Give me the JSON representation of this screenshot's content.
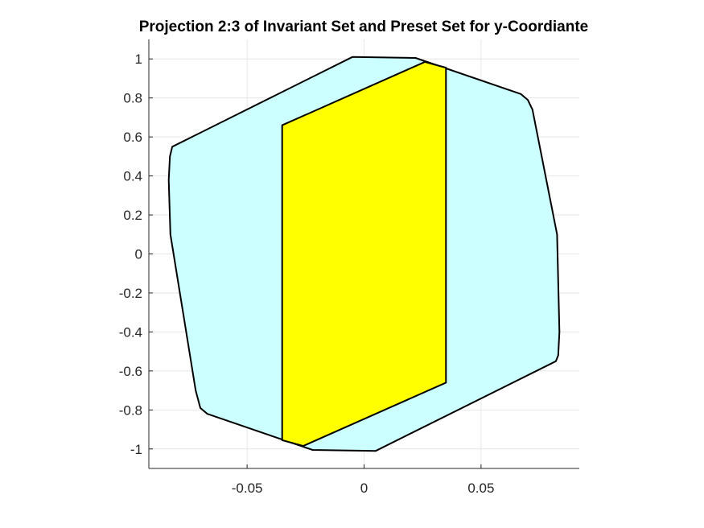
{
  "chart_data": {
    "type": "area",
    "title": "Projection 2:3 of Invariant Set and Preset Set for y-Coordiante",
    "xlabel": "",
    "ylabel": "",
    "xlim": [
      -0.092,
      0.092
    ],
    "ylim": [
      -1.1,
      1.1
    ],
    "grid": true,
    "x_ticks": [
      -0.05,
      0,
      0.05
    ],
    "x_tick_labels": [
      "-0.05",
      "0",
      "0.05"
    ],
    "y_ticks": [
      1,
      0.8,
      0.6,
      0.4,
      0.2,
      0,
      -0.2,
      -0.4,
      -0.6,
      -0.8,
      -1
    ],
    "y_tick_labels": [
      "1",
      "0.8",
      "0.6",
      "0.4",
      "0.2",
      "0",
      "-0.2",
      "-0.4",
      "-0.6",
      "-0.8",
      "-1"
    ],
    "series": [
      {
        "color": "#ccffff",
        "edge_color": "#000000",
        "points": [
          [
            -0.005,
            1.01
          ],
          [
            0.022,
            1.005
          ],
          [
            0.067,
            0.82
          ],
          [
            0.07,
            0.79
          ],
          [
            0.072,
            0.74
          ],
          [
            0.0825,
            0.1
          ],
          [
            0.0835,
            -0.4
          ],
          [
            0.083,
            -0.52
          ],
          [
            0.082,
            -0.55
          ],
          [
            0.005,
            -1.01
          ],
          [
            -0.022,
            -1.005
          ],
          [
            -0.067,
            -0.82
          ],
          [
            -0.07,
            -0.79
          ],
          [
            -0.072,
            -0.7
          ],
          [
            -0.0828,
            0.1
          ],
          [
            -0.0835,
            0.38
          ],
          [
            -0.083,
            0.5
          ],
          [
            -0.082,
            0.55
          ]
        ]
      },
      {
        "color": "#ffff00",
        "edge_color": "#000000",
        "points": [
          [
            -0.035,
            0.66
          ],
          [
            0.026,
            0.985
          ],
          [
            0.035,
            0.955
          ],
          [
            0.035,
            -0.66
          ],
          [
            -0.026,
            -0.985
          ],
          [
            -0.035,
            -0.955
          ]
        ]
      }
    ]
  }
}
